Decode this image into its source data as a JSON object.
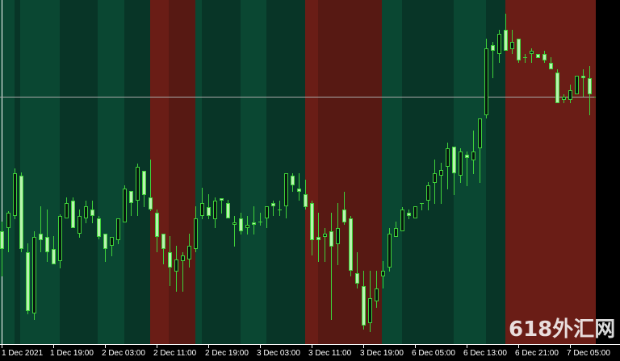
{
  "chart_data": {
    "type": "candlestick",
    "timeframe_hours": 1,
    "colors": {
      "background": "#000000",
      "session_green": "#0a4732",
      "session_dark_green": "#083527",
      "session_red": "#6a1d16",
      "session_dark_red": "#571913",
      "wick": "#3fd23a",
      "bull_body": "#06160e",
      "bear_body": "#b9f3b0",
      "axis": "#ffffff",
      "price_line": "#a8a8a8"
    },
    "x_tick_labels": [
      "1 Dec 2021",
      "1 Dec 19:00",
      "2 Dec 03:00",
      "2 Dec 11:00",
      "2 Dec 19:00",
      "3 Dec 03:00",
      "3 Dec 11:00",
      "3 Dec 19:00",
      "6 Dec 05:00",
      "6 Dec 13:00",
      "6 Dec 21:00",
      "7 Dec 05:00"
    ],
    "candles_per_tick": 8,
    "ylim": [
      0,
      427
    ],
    "current_price": 307,
    "ohlc": [
      [
        140,
        152,
        84,
        118
      ],
      [
        144,
        165,
        114,
        163
      ],
      [
        159,
        218,
        155,
        212
      ],
      [
        209,
        213,
        114,
        118
      ],
      [
        114,
        125,
        37,
        41
      ],
      [
        38,
        140,
        30,
        133
      ],
      [
        137,
        171,
        114,
        129
      ],
      [
        133,
        167,
        102,
        114
      ],
      [
        118,
        134,
        99,
        99
      ],
      [
        103,
        161,
        94,
        159
      ],
      [
        156,
        182,
        156,
        175
      ],
      [
        178,
        182,
        144,
        144
      ],
      [
        137,
        167,
        132,
        159
      ],
      [
        156,
        178,
        150,
        171
      ],
      [
        167,
        178,
        150,
        159
      ],
      [
        156,
        159,
        130,
        133
      ],
      [
        137,
        137,
        102,
        118
      ],
      [
        122,
        133,
        109,
        133
      ],
      [
        129,
        156,
        124,
        156
      ],
      [
        151,
        197,
        151,
        193
      ],
      [
        190,
        190,
        159,
        175
      ],
      [
        178,
        224,
        159,
        220
      ],
      [
        215,
        215,
        170,
        185
      ],
      [
        182,
        229,
        165,
        167
      ],
      [
        163,
        167,
        114,
        133
      ],
      [
        137,
        137,
        99,
        118
      ],
      [
        114,
        134,
        72,
        95
      ],
      [
        90,
        122,
        65,
        105
      ],
      [
        103,
        114,
        65,
        110
      ],
      [
        105,
        137,
        95,
        122
      ],
      [
        118,
        171,
        114,
        156
      ],
      [
        159,
        194,
        155,
        175
      ],
      [
        170,
        186,
        155,
        159
      ],
      [
        155,
        182,
        144,
        178
      ],
      [
        181,
        181,
        162,
        178
      ],
      [
        175,
        179,
        156,
        156
      ],
      [
        148,
        159,
        121,
        151
      ],
      [
        156,
        163,
        136,
        140
      ],
      [
        144,
        159,
        136,
        148
      ],
      [
        151,
        171,
        136,
        148
      ],
      [
        152,
        163,
        147,
        152
      ],
      [
        156,
        171,
        144,
        171
      ],
      [
        175,
        178,
        159,
        171
      ],
      [
        167,
        178,
        159,
        167
      ],
      [
        171,
        212,
        156,
        212
      ],
      [
        209,
        212,
        189,
        197
      ],
      [
        193,
        212,
        178,
        189
      ],
      [
        186,
        204,
        167,
        170
      ],
      [
        175,
        178,
        110,
        129
      ],
      [
        133,
        163,
        102,
        129
      ],
      [
        133,
        144,
        102,
        137
      ],
      [
        140,
        163,
        30,
        121
      ],
      [
        124,
        175,
        98,
        144
      ],
      [
        167,
        189,
        148,
        151
      ],
      [
        156,
        159,
        84,
        91
      ],
      [
        88,
        114,
        69,
        75
      ],
      [
        72,
        91,
        18,
        23
      ],
      [
        26,
        91,
        15,
        57
      ],
      [
        53,
        91,
        45,
        69
      ],
      [
        84,
        103,
        69,
        91
      ],
      [
        95,
        144,
        90,
        137
      ],
      [
        133,
        152,
        133,
        144
      ],
      [
        140,
        170,
        140,
        167
      ],
      [
        163,
        167,
        155,
        159
      ],
      [
        156,
        171,
        156,
        171
      ],
      [
        175,
        175,
        166,
        175
      ],
      [
        178,
        201,
        166,
        197
      ],
      [
        200,
        229,
        174,
        212
      ],
      [
        209,
        225,
        174,
        216
      ],
      [
        220,
        250,
        192,
        243
      ],
      [
        245,
        245,
        185,
        212
      ],
      [
        209,
        243,
        200,
        239
      ],
      [
        235,
        239,
        196,
        231
      ],
      [
        228,
        265,
        211,
        239
      ],
      [
        243,
        280,
        200,
        280
      ],
      [
        284,
        379,
        280,
        367
      ],
      [
        371,
        375,
        330,
        364
      ],
      [
        360,
        390,
        349,
        385
      ],
      [
        390,
        410,
        364,
        364
      ],
      [
        366,
        390,
        360,
        375
      ],
      [
        379,
        379,
        349,
        352
      ],
      [
        356,
        360,
        349,
        356
      ],
      [
        360,
        367,
        349,
        364
      ],
      [
        360,
        360,
        355,
        355
      ],
      [
        360,
        364,
        349,
        352
      ],
      [
        349,
        356,
        341,
        341
      ],
      [
        337,
        341,
        299,
        299
      ],
      [
        303,
        310,
        299,
        307
      ],
      [
        303,
        322,
        299,
        315
      ],
      [
        310,
        333,
        310,
        333
      ],
      [
        333,
        341,
        307,
        330
      ],
      [
        330,
        345,
        284,
        310
      ],
      [
        307,
        307,
        302,
        307
      ]
    ]
  },
  "watermark": "618外汇网"
}
